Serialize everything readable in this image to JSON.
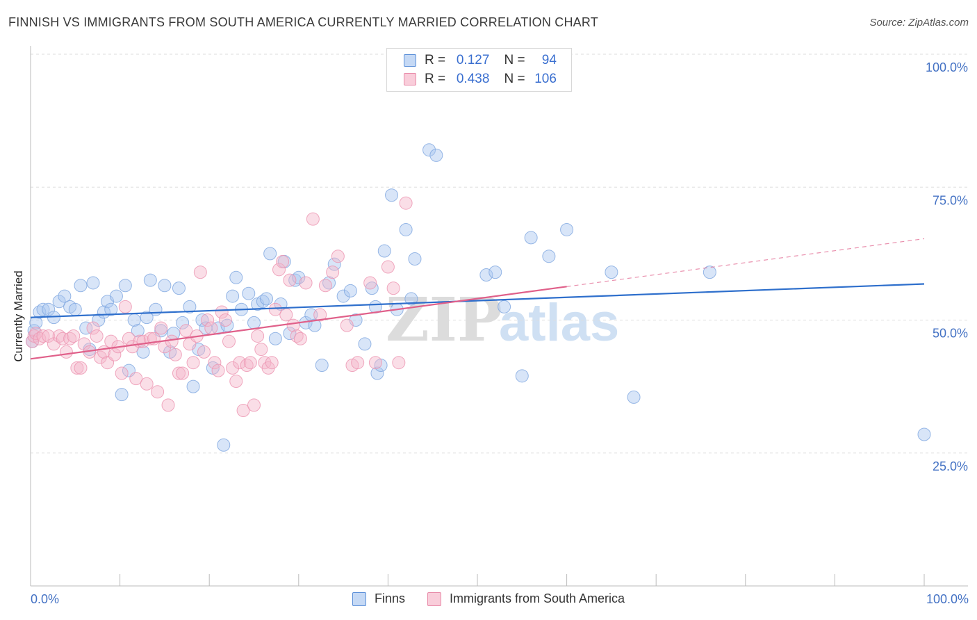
{
  "title": "FINNISH VS IMMIGRANTS FROM SOUTH AMERICA CURRENTLY MARRIED CORRELATION CHART",
  "source": "Source: ZipAtlas.com",
  "watermark": "ZIPatlas",
  "colors": {
    "blue_fill": "#a9c6ef",
    "blue_line": "#2e6fcc",
    "pink_fill": "#f4b6c9",
    "pink_line": "#e0608a"
  },
  "legend": {
    "rows": [
      {
        "r_label": "R =",
        "r_value": "0.127",
        "n_label": "N =",
        "n_value": "94"
      },
      {
        "r_label": "R =",
        "r_value": "0.438",
        "n_label": "N =",
        "n_value": "106"
      }
    ]
  },
  "chart_data": {
    "type": "scatter",
    "xlabel": "",
    "ylabel": "Currently Married",
    "xlim": [
      0,
      100
    ],
    "ylim": [
      0,
      100
    ],
    "x_tick_labels": [
      "0.0%",
      "100.0%"
    ],
    "y_ticks": [
      {
        "value": 100,
        "label": "100.0%"
      },
      {
        "value": 75,
        "label": "75.0%"
      },
      {
        "value": 50,
        "label": "50.0%"
      },
      {
        "value": 25,
        "label": "25.0%"
      }
    ],
    "grid": true,
    "legend_position": "bottom",
    "series": [
      {
        "name": "Finns",
        "color": "#a9c6ef",
        "trend": {
          "x": [
            0,
            100
          ],
          "y": [
            50.5,
            56.8
          ],
          "dashed_to": null
        },
        "points": [
          [
            0.2,
            46
          ],
          [
            0.4,
            48
          ],
          [
            0.6,
            49.5
          ],
          [
            1,
            51.5
          ],
          [
            1.4,
            52
          ],
          [
            2,
            52
          ],
          [
            2.6,
            50.5
          ],
          [
            3.2,
            53.5
          ],
          [
            3.8,
            54.5
          ],
          [
            4.4,
            52.5
          ],
          [
            5,
            52
          ],
          [
            5.6,
            56.5
          ],
          [
            6.2,
            48.5
          ],
          [
            6.6,
            44.5
          ],
          [
            7,
            57
          ],
          [
            7.6,
            50
          ],
          [
            8.2,
            51.5
          ],
          [
            8.6,
            53.5
          ],
          [
            9,
            52
          ],
          [
            9.6,
            54.5
          ],
          [
            10.2,
            36
          ],
          [
            10.6,
            56.5
          ],
          [
            11,
            40.5
          ],
          [
            11.6,
            50
          ],
          [
            12,
            48
          ],
          [
            12.6,
            44
          ],
          [
            13,
            50.5
          ],
          [
            13.4,
            57.5
          ],
          [
            14,
            52
          ],
          [
            14.6,
            48
          ],
          [
            15,
            56.5
          ],
          [
            15.6,
            44
          ],
          [
            16,
            47.5
          ],
          [
            16.6,
            56
          ],
          [
            17,
            49.5
          ],
          [
            17.8,
            52.5
          ],
          [
            18.2,
            37.5
          ],
          [
            18.8,
            44.5
          ],
          [
            19.2,
            50
          ],
          [
            19.6,
            48.5
          ],
          [
            20.4,
            41
          ],
          [
            21,
            48.5
          ],
          [
            21.6,
            26.5
          ],
          [
            22,
            49
          ],
          [
            22.6,
            54.5
          ],
          [
            23,
            58
          ],
          [
            23.6,
            52
          ],
          [
            24.4,
            55
          ],
          [
            25,
            49.5
          ],
          [
            25.4,
            53
          ],
          [
            26,
            53.5
          ],
          [
            26.4,
            54
          ],
          [
            26.8,
            62.5
          ],
          [
            27.4,
            46.5
          ],
          [
            28,
            53
          ],
          [
            28.4,
            61
          ],
          [
            29,
            47.5
          ],
          [
            29.6,
            57.5
          ],
          [
            30,
            58
          ],
          [
            30.8,
            49.5
          ],
          [
            31.4,
            51
          ],
          [
            31.8,
            49
          ],
          [
            32.6,
            41.5
          ],
          [
            33.4,
            57
          ],
          [
            34,
            60.5
          ],
          [
            35,
            54.5
          ],
          [
            35.8,
            55.5
          ],
          [
            36.4,
            50
          ],
          [
            37.4,
            45.5
          ],
          [
            38.2,
            56
          ],
          [
            38.6,
            52.5
          ],
          [
            38.8,
            40
          ],
          [
            39.2,
            41.5
          ],
          [
            39.6,
            63
          ],
          [
            40.4,
            73.5
          ],
          [
            41,
            52
          ],
          [
            42,
            67
          ],
          [
            42.6,
            54
          ],
          [
            43,
            61.5
          ],
          [
            44.6,
            82
          ],
          [
            45.4,
            81
          ],
          [
            51,
            58.5
          ],
          [
            52,
            59
          ],
          [
            53,
            52.5
          ],
          [
            55,
            39.5
          ],
          [
            56,
            65.5
          ],
          [
            58,
            62
          ],
          [
            60,
            67
          ],
          [
            65,
            59
          ],
          [
            67.5,
            35.5
          ],
          [
            76,
            59
          ],
          [
            100,
            28.5
          ]
        ]
      },
      {
        "name": "Immigrants from South America",
        "color": "#f4b6c9",
        "trend": {
          "x": [
            0,
            60
          ],
          "y": [
            42.7,
            56.3
          ],
          "dashed_to": [
            100,
            65.3
          ]
        },
        "points": [
          [
            0.2,
            46
          ],
          [
            0.4,
            47
          ],
          [
            0.6,
            47.5
          ],
          [
            1,
            46.5
          ],
          [
            1.4,
            47
          ],
          [
            2,
            47
          ],
          [
            2.6,
            45.5
          ],
          [
            3.2,
            47
          ],
          [
            3.6,
            46.5
          ],
          [
            4,
            44
          ],
          [
            4.4,
            46.5
          ],
          [
            4.8,
            47
          ],
          [
            5.2,
            41
          ],
          [
            5.6,
            41
          ],
          [
            6,
            45.5
          ],
          [
            6.6,
            44
          ],
          [
            7,
            48.5
          ],
          [
            7.4,
            47
          ],
          [
            7.8,
            43
          ],
          [
            8.2,
            44
          ],
          [
            8.6,
            42
          ],
          [
            9,
            46
          ],
          [
            9.4,
            43.5
          ],
          [
            9.8,
            45
          ],
          [
            10.2,
            40
          ],
          [
            10.6,
            52.5
          ],
          [
            11,
            46.5
          ],
          [
            11.4,
            45
          ],
          [
            11.8,
            39
          ],
          [
            12.2,
            46
          ],
          [
            12.6,
            46
          ],
          [
            13,
            38
          ],
          [
            13.4,
            46.5
          ],
          [
            13.8,
            46.5
          ],
          [
            14.2,
            36.5
          ],
          [
            14.6,
            48.5
          ],
          [
            15,
            45
          ],
          [
            15.4,
            34
          ],
          [
            15.8,
            46
          ],
          [
            16.2,
            43.5
          ],
          [
            16.6,
            40
          ],
          [
            17,
            40
          ],
          [
            17.4,
            48
          ],
          [
            17.8,
            45.5
          ],
          [
            18.2,
            42
          ],
          [
            18.6,
            47
          ],
          [
            19,
            59
          ],
          [
            19.4,
            44
          ],
          [
            19.8,
            50
          ],
          [
            20.2,
            48.5
          ],
          [
            20.6,
            42
          ],
          [
            21,
            40.5
          ],
          [
            21.4,
            51.5
          ],
          [
            21.8,
            50
          ],
          [
            22.2,
            46
          ],
          [
            22.6,
            41
          ],
          [
            23,
            38.5
          ],
          [
            23.4,
            42
          ],
          [
            23.8,
            33
          ],
          [
            24.2,
            41.5
          ],
          [
            24.6,
            42
          ],
          [
            25,
            34
          ],
          [
            25.4,
            47
          ],
          [
            25.8,
            44.5
          ],
          [
            26.2,
            42
          ],
          [
            26.6,
            41
          ],
          [
            27,
            42
          ],
          [
            27.4,
            52
          ],
          [
            27.8,
            59.5
          ],
          [
            28.2,
            61
          ],
          [
            28.6,
            51
          ],
          [
            29,
            57.5
          ],
          [
            29.4,
            49
          ],
          [
            29.8,
            47
          ],
          [
            30.2,
            46.5
          ],
          [
            30.8,
            57
          ],
          [
            31.6,
            69
          ],
          [
            32.4,
            51
          ],
          [
            33,
            56.5
          ],
          [
            33.8,
            59
          ],
          [
            34.4,
            62
          ],
          [
            35.4,
            49
          ],
          [
            36,
            41.5
          ],
          [
            36.6,
            42
          ],
          [
            38,
            57
          ],
          [
            38.6,
            42
          ],
          [
            40,
            60
          ],
          [
            40.6,
            56
          ],
          [
            41.2,
            42
          ],
          [
            42,
            72
          ]
        ]
      }
    ]
  },
  "bottom_legend": [
    "Finns",
    "Immigrants from South America"
  ]
}
